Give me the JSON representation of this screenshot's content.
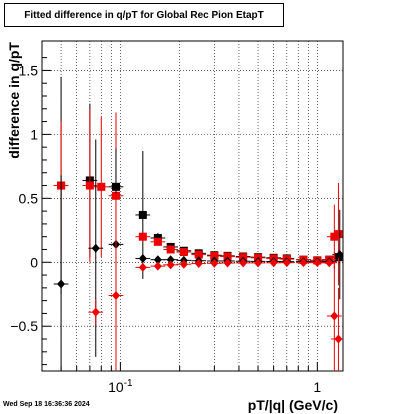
{
  "title": "Fitted difference in q/pT for Global Rec Pion EtapT",
  "timestamp": "Wed Sep 18 16:36:36 2024",
  "colors": {
    "black_series": "#000000",
    "red_series": "#ee0000",
    "grid": "#000000"
  },
  "chart_data": {
    "type": "scatter",
    "title": "Fitted difference in q/pT for Global Rec Pion EtapT",
    "xlabel": "pT/|q| (GeV/c)",
    "ylabel": "difference in q/pT",
    "x_scale": "log",
    "xlim": [
      0.04,
      1.35
    ],
    "ylim": [
      -0.85,
      1.73
    ],
    "grid": true,
    "x_ticks": [
      {
        "value": 0.1,
        "base": "10",
        "exp": "-1"
      },
      {
        "value": 1,
        "label": "1"
      }
    ],
    "y_ticks": [
      {
        "value": -0.5,
        "label": "−0.5"
      },
      {
        "value": 0,
        "label": "0"
      },
      {
        "value": 0.5,
        "label": "0.5"
      },
      {
        "value": 1,
        "label": "1"
      },
      {
        "value": 1.5,
        "label": "1.5"
      }
    ],
    "series": [
      {
        "marker": "square",
        "color": "#000000",
        "x": [
          0.05,
          0.07,
          0.095,
          0.13,
          0.155,
          0.18,
          0.21,
          0.25,
          0.3,
          0.35,
          0.42,
          0.5,
          0.6,
          0.7,
          0.85,
          1.0,
          1.15,
          1.28
        ],
        "y": [
          0.6,
          0.64,
          0.59,
          0.37,
          0.19,
          0.12,
          0.09,
          0.07,
          0.055,
          0.05,
          0.045,
          0.04,
          0.035,
          0.03,
          0.02,
          0.015,
          0.02,
          0.04
        ],
        "yerr": [
          0.85,
          0.6,
          0.5,
          0.5,
          0.04,
          0.02,
          0.015,
          0.01,
          0.01,
          0.01,
          0.01,
          0.01,
          0.01,
          0.01,
          0.01,
          0.015,
          0.03,
          0.06
        ]
      },
      {
        "marker": "square",
        "color": "#ee0000",
        "x": [
          0.05,
          0.07,
          0.08,
          0.095,
          0.13,
          0.155,
          0.18,
          0.21,
          0.25,
          0.3,
          0.35,
          0.42,
          0.5,
          0.6,
          0.7,
          0.85,
          1.0,
          1.15,
          1.22,
          1.28
        ],
        "y": [
          0.6,
          0.6,
          0.59,
          0.52,
          0.2,
          0.16,
          0.1,
          0.08,
          0.06,
          0.05,
          0.045,
          0.04,
          0.035,
          0.03,
          0.025,
          0.02,
          0.015,
          0.02,
          0.2,
          0.22
        ],
        "yerr": [
          0.5,
          0.6,
          0.55,
          0.65,
          0.04,
          0.03,
          0.02,
          0.015,
          0.01,
          0.01,
          0.01,
          0.01,
          0.01,
          0.01,
          0.01,
          0.01,
          0.015,
          0.03,
          0.25,
          0.4
        ]
      },
      {
        "marker": "diamond",
        "color": "#000000",
        "x": [
          0.05,
          0.075,
          0.095,
          0.13,
          0.155,
          0.18,
          0.21,
          0.25,
          0.3,
          0.35,
          0.42,
          0.5,
          0.6,
          0.7,
          0.85,
          1.0,
          1.15,
          1.3
        ],
        "y": [
          -0.17,
          0.11,
          0.14,
          0.03,
          0.02,
          0.02,
          0.015,
          0.012,
          0.01,
          0.01,
          0.008,
          0.007,
          0.006,
          0.005,
          0.005,
          0.004,
          0.005,
          0.06
        ],
        "yerr": [
          0.85,
          0.85,
          0.75,
          0.02,
          0.015,
          0.01,
          0.008,
          0.006,
          0.005,
          0.005,
          0.005,
          0.005,
          0.005,
          0.005,
          0.005,
          0.006,
          0.02,
          0.35
        ]
      },
      {
        "marker": "diamond",
        "color": "#ee0000",
        "x": [
          0.075,
          0.095,
          0.13,
          0.155,
          0.18,
          0.21,
          0.25,
          0.3,
          0.35,
          0.42,
          0.5,
          0.6,
          0.7,
          0.85,
          1.0,
          1.15,
          1.22,
          1.28
        ],
        "y": [
          -0.39,
          -0.26,
          -0.04,
          -0.03,
          -0.02,
          -0.015,
          -0.01,
          -0.008,
          -0.006,
          -0.005,
          -0.005,
          -0.004,
          -0.003,
          -0.003,
          -0.003,
          -0.004,
          -0.42,
          -0.6
        ],
        "yerr": [
          0.1,
          0.8,
          0.03,
          0.02,
          0.015,
          0.01,
          0.008,
          0.006,
          0.005,
          0.005,
          0.005,
          0.005,
          0.005,
          0.005,
          0.005,
          0.01,
          0.5,
          0.4
        ]
      }
    ]
  }
}
